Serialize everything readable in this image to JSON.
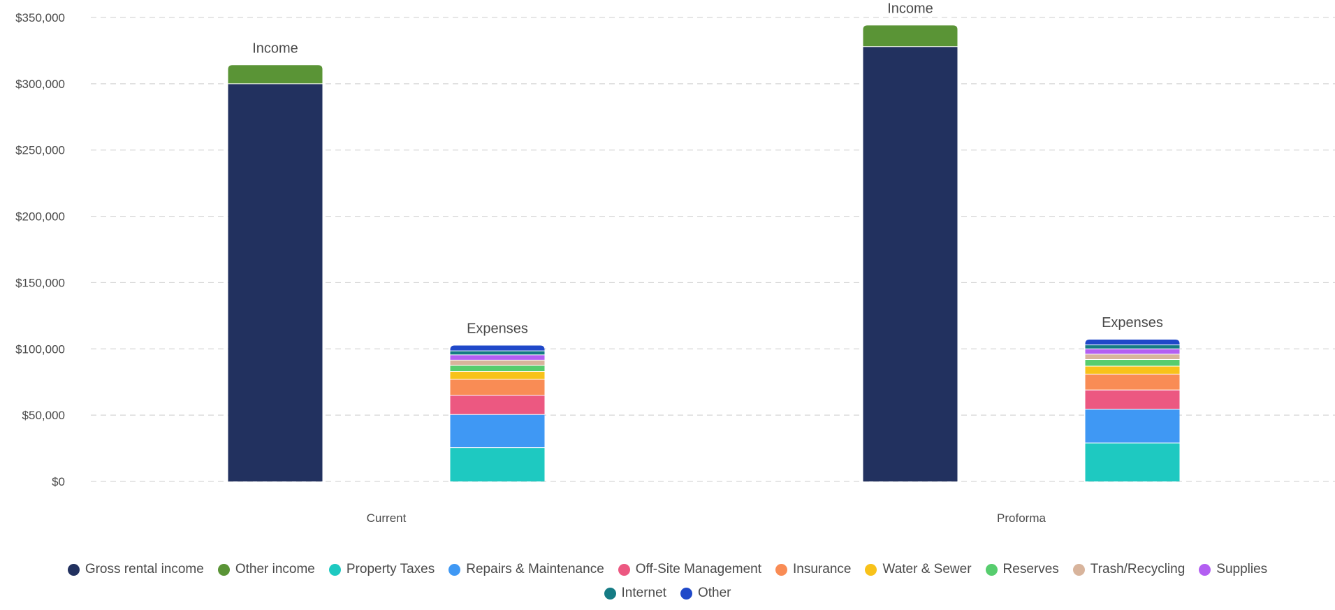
{
  "chart_data": {
    "type": "bar",
    "stacked": true,
    "categories": [
      "Current",
      "Proforma"
    ],
    "stacks": [
      "Income",
      "Expenses"
    ],
    "yticks": [
      "$0",
      "$50,000",
      "$100,000",
      "$150,000",
      "$200,000",
      "$250,000",
      "$300,000",
      "$350,000"
    ],
    "ylim": [
      0,
      350000
    ],
    "grid": true,
    "legend_position": "bottom",
    "series": [
      {
        "name": "Gross rental income",
        "stack": "Income",
        "color": "#22315f",
        "values": [
          300000,
          328000
        ]
      },
      {
        "name": "Other income",
        "stack": "Income",
        "color": "#5a9436",
        "values": [
          14000,
          16000
        ]
      },
      {
        "name": "Property Taxes",
        "stack": "Expenses",
        "color": "#1ec9c1",
        "values": [
          25500,
          29000
        ]
      },
      {
        "name": "Repairs & Maintenance",
        "stack": "Expenses",
        "color": "#3f98f4",
        "values": [
          25000,
          25500
        ]
      },
      {
        "name": "Off-Site Management",
        "stack": "Expenses",
        "color": "#ec5881",
        "values": [
          14500,
          14500
        ]
      },
      {
        "name": "Insurance",
        "stack": "Expenses",
        "color": "#f98c55",
        "values": [
          12000,
          12000
        ]
      },
      {
        "name": "Water & Sewer",
        "stack": "Expenses",
        "color": "#f8c21a",
        "values": [
          6000,
          6000
        ]
      },
      {
        "name": "Reserves",
        "stack": "Expenses",
        "color": "#57cd6e",
        "values": [
          4500,
          5000
        ]
      },
      {
        "name": "Trash/Recycling",
        "stack": "Expenses",
        "color": "#d8b49c",
        "values": [
          4000,
          4000
        ]
      },
      {
        "name": "Supplies",
        "stack": "Expenses",
        "color": "#b35ff2",
        "values": [
          4000,
          4000
        ]
      },
      {
        "name": "Internet",
        "stack": "Expenses",
        "color": "#157b84",
        "values": [
          3000,
          3000
        ]
      },
      {
        "name": "Other",
        "stack": "Expenses",
        "color": "#1f48c9",
        "values": [
          4000,
          4000
        ]
      }
    ]
  }
}
